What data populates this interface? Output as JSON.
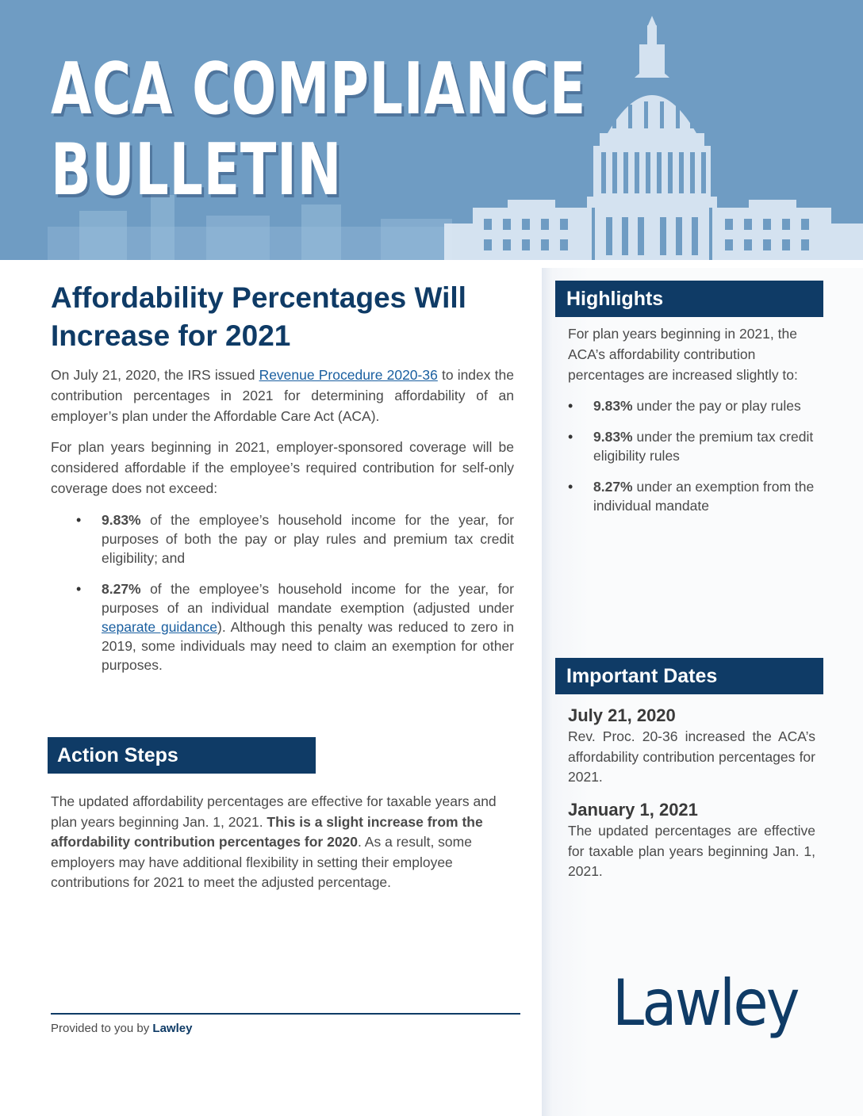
{
  "banner": {
    "title": "ACA COMPLIANCE\nBULLETIN"
  },
  "main": {
    "title": "Affordability Percentages Will Increase for 2021",
    "intro_pre": "On July 21, 2020, the IRS issued ",
    "intro_link": "Revenue Procedure 2020-36",
    "intro_post": " to index the contribution percentages in 2021 for determining affordability of an employer’s plan under the Affordable Care Act (ACA).",
    "para2": "For plan years beginning in 2021, employer-sponsored coverage will be considered affordable if the employee’s required contribution for self-only coverage does not exceed:",
    "bullet1_bold": "9.83%",
    "bullet1_text": " of the employee’s household income for the year, for purposes of both the pay or play rules and premium tax credit eligibility; and",
    "bullet2_bold": "8.27%",
    "bullet2_pre": " of the employee’s household income for the year, for purposes of an individual mandate exemption (adjusted under ",
    "bullet2_link": "separate guidance",
    "bullet2_post": "). Although this penalty was reduced to zero in 2019, some individuals may need to claim an exemption for other purposes."
  },
  "action_steps": {
    "header": "Action Steps",
    "text_pre": "The updated affordability percentages are effective for taxable years and plan years beginning Jan. 1, 2021. ",
    "text_bold": "This is a slight increase from the affordability contribution percentages for 2020",
    "text_post": ". As a result, some employers may have additional flexibility in setting their employee contributions for 2021 to meet the adjusted percentage."
  },
  "highlights": {
    "header": "Highlights",
    "intro": "For plan years beginning in 2021, the ACA’s affordability contribution percentages are increased slightly to:",
    "items": [
      {
        "bold": "9.83%",
        "text": " under the pay or play rules"
      },
      {
        "bold": "9.83%",
        "text": " under the premium tax credit eligibility rules"
      },
      {
        "bold": "8.27%",
        "text": " under an exemption from the individual mandate"
      }
    ]
  },
  "important_dates": {
    "header": "Important Dates",
    "dates": [
      {
        "date": "July 21, 2020",
        "text": "Rev. Proc. 20-36 increased the ACA’s affordability contribution percentages for 2021."
      },
      {
        "date": "January 1, 2021",
        "text": "The updated percentages are effective for taxable plan years beginning Jan. 1, 2021."
      }
    ]
  },
  "footer": {
    "prefix": "Provided to you by ",
    "company": "Lawley"
  },
  "logo": {
    "text": "Lawley"
  },
  "colors": {
    "banner": "#6f9cc3",
    "navy": "#0f3b66",
    "link": "#1a5fa0"
  }
}
